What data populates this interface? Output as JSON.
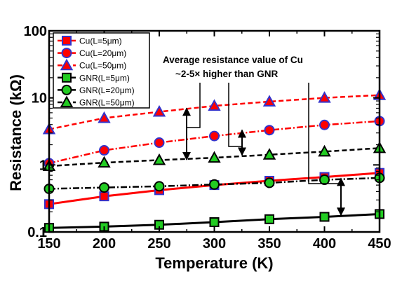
{
  "chart_data": {
    "type": "line",
    "xlabel": "Temperature (K)",
    "ylabel": "Resistance (kΩ)",
    "xlim": [
      150,
      450
    ],
    "ylim": [
      0.1,
      100
    ],
    "yscale": "log",
    "xticks": [
      "150",
      "200",
      "250",
      "300",
      "350",
      "400",
      "450"
    ],
    "yticks": [
      "0.1",
      "1",
      "10",
      "100"
    ],
    "grid": false,
    "legend_position": "top-left",
    "x": [
      150,
      200,
      250,
      300,
      350,
      400,
      450
    ],
    "series": [
      {
        "name": "Cu(L=5μm)",
        "marker": "square",
        "color": "#ff0000",
        "marker_color": "#ff0000",
        "line_style": "solid",
        "values": [
          0.26,
          0.34,
          0.42,
          0.5,
          0.58,
          0.66,
          0.76
        ]
      },
      {
        "name": "Cu(L=20μm)",
        "marker": "circle",
        "color": "#ff0000",
        "marker_color": "#ff0000",
        "line_style": "dashdot",
        "values": [
          1.06,
          1.65,
          2.15,
          2.7,
          3.3,
          3.95,
          4.5
        ]
      },
      {
        "name": "Cu(L=50μm)",
        "marker": "triangle",
        "color": "#ff0000",
        "marker_color": "#ff0000",
        "line_style": "dashed",
        "values": [
          3.4,
          5.0,
          6.2,
          7.6,
          8.8,
          10.0,
          11.0
        ]
      },
      {
        "name": "GNR(L=5μm)",
        "marker": "square",
        "color": "#000000",
        "marker_color": "#22cc22",
        "line_style": "solid",
        "values": [
          0.115,
          0.12,
          0.128,
          0.14,
          0.155,
          0.168,
          0.185
        ]
      },
      {
        "name": "GNR(L=20μm)",
        "marker": "circle",
        "color": "#000000",
        "marker_color": "#22cc22",
        "line_style": "dashdot",
        "values": [
          0.44,
          0.46,
          0.48,
          0.51,
          0.54,
          0.6,
          0.64
        ]
      },
      {
        "name": "GNR(L=50μm)",
        "marker": "triangle",
        "color": "#000000",
        "marker_color": "#22cc22",
        "line_style": "dashed",
        "values": [
          0.96,
          1.08,
          1.18,
          1.28,
          1.42,
          1.58,
          1.78
        ]
      }
    ],
    "annotations": [
      {
        "text": "Average resistance value of Cu",
        "line": 1
      },
      {
        "text": "~2-5× higher than GNR",
        "line": 2
      }
    ]
  }
}
